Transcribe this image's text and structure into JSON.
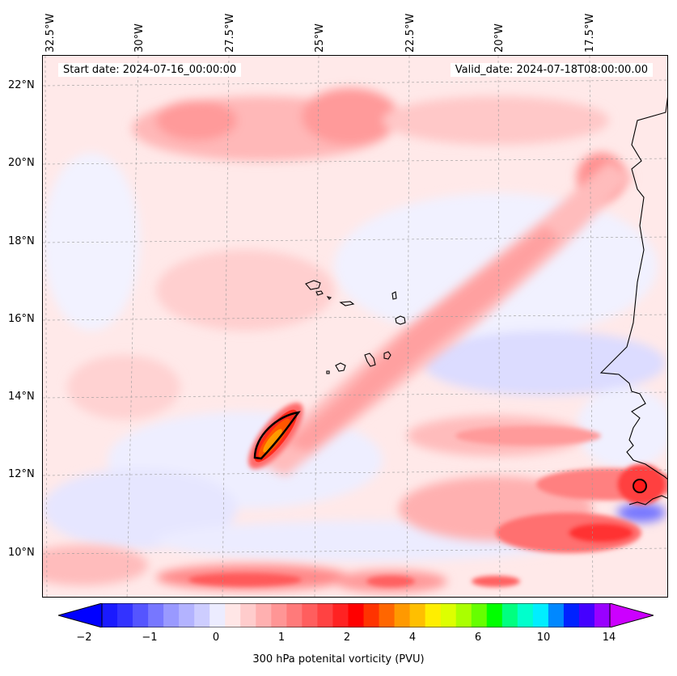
{
  "map": {
    "start_date": "Start date: 2024-07-16_00:00:00",
    "valid_date": "Valid_date: 2024-07-18T08:00:00.00",
    "lon_labels": [
      "32.5°W",
      "30°W",
      "27.5°W",
      "25°W",
      "22.5°W",
      "20°W",
      "17.5°W"
    ],
    "lat_labels": [
      "22°N",
      "20°N",
      "18°N",
      "16°N",
      "14°N",
      "12°N",
      "10°N"
    ]
  },
  "colorbar": {
    "ticks": [
      "−2",
      "−1",
      "0",
      "1",
      "2",
      "4",
      "6",
      "10",
      "14"
    ],
    "label": "300 hPa potenital vorticity (PVU)",
    "colors": [
      "#1a1aff",
      "#3333ff",
      "#5555ff",
      "#7777ff",
      "#9999ff",
      "#b3b3ff",
      "#cdcdff",
      "#ececff",
      "#ffe6e6",
      "#ffcccc",
      "#ffb0b0",
      "#ff9595",
      "#ff7a7a",
      "#ff5e5e",
      "#ff4242",
      "#ff2222",
      "#ff0000",
      "#ff3300",
      "#ff6600",
      "#ff9900",
      "#ffbf00",
      "#ffee00",
      "#ddff00",
      "#aaff00",
      "#66ff00",
      "#00ff00",
      "#00ff80",
      "#00ffcc",
      "#00eeff",
      "#0088ff",
      "#0022ff",
      "#4400ff",
      "#9900ff"
    ],
    "extend_min_color": "#0000ff",
    "extend_max_color": "#cc00ff"
  }
}
